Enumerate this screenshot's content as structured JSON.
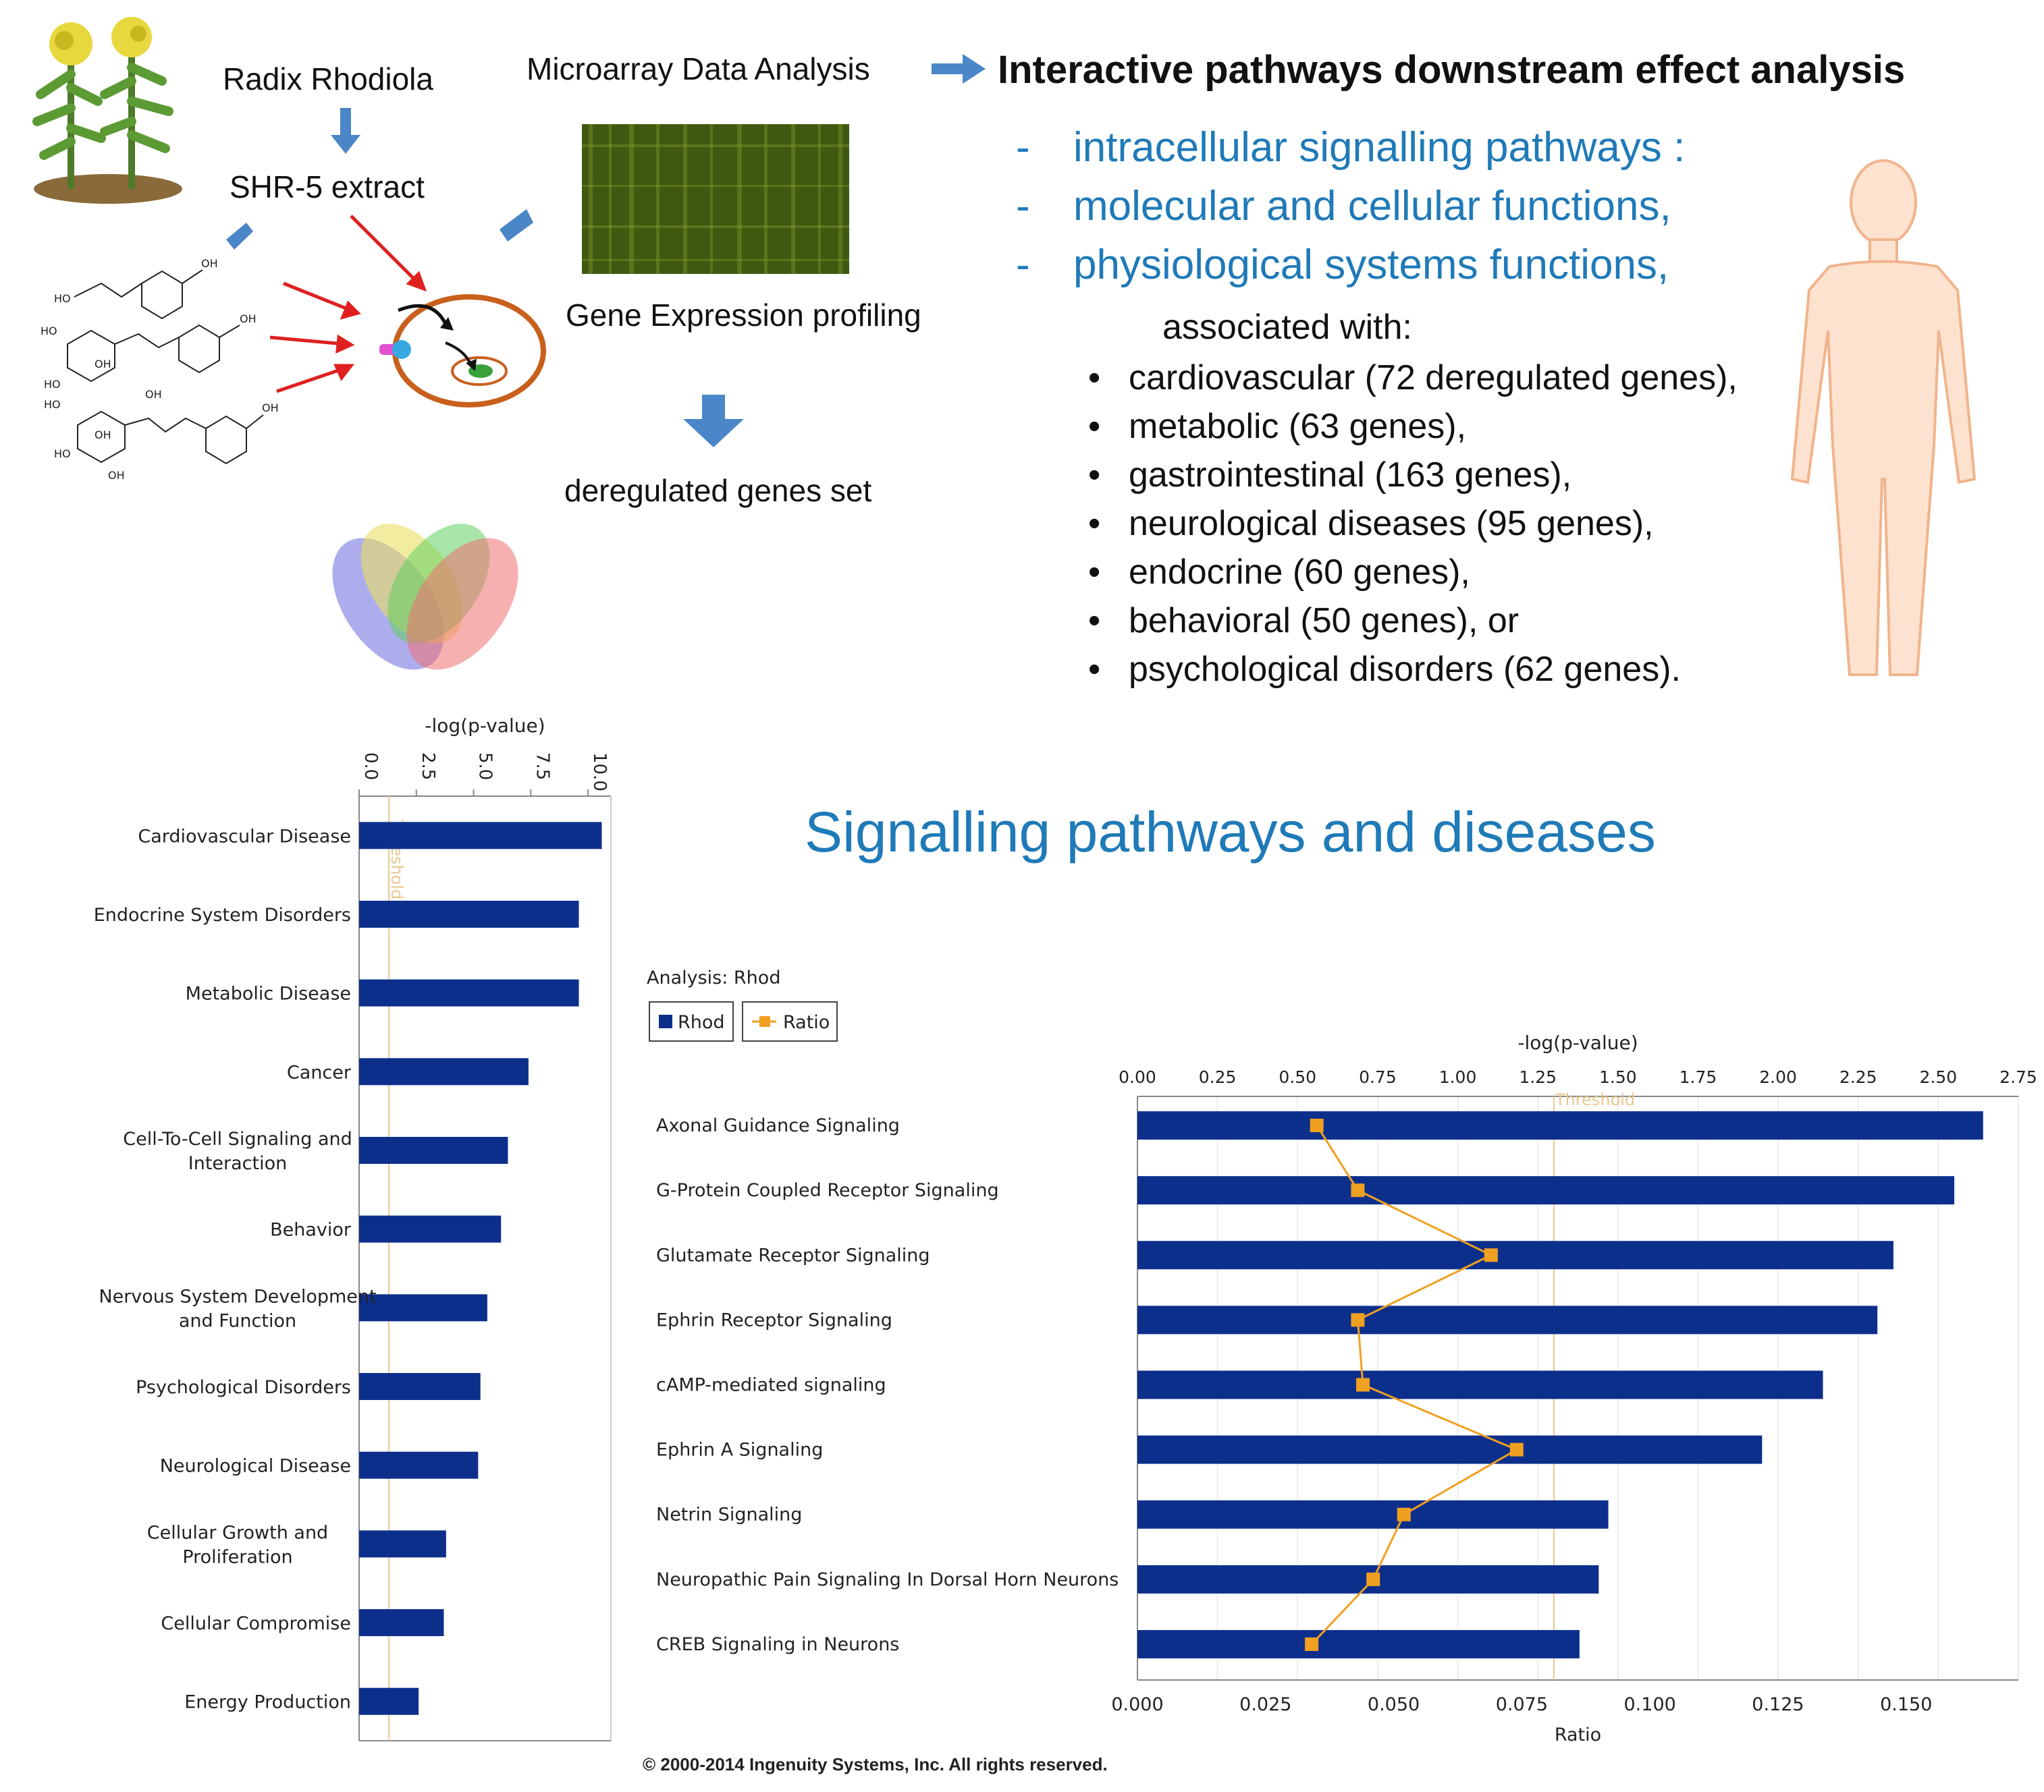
{
  "workflow": {
    "source_label": "Radix Rhodiola",
    "extract_label": "SHR-5 extract",
    "microarray_label": "Microarray Data Analysis",
    "profiling_label": "Gene Expression profiling",
    "deregulated_label": "deregulated genes set",
    "molecule_labels": [
      "OH",
      "HO",
      "HO",
      "OH",
      "OH",
      "HO",
      "HO",
      "OH",
      "HO",
      "OH",
      "OH",
      "OH"
    ]
  },
  "analysis": {
    "title": "Interactive pathways downstream effect analysis",
    "dash_items": [
      "intracellular signalling pathways :",
      "molecular and cellular functions,",
      "physiological systems functions,"
    ],
    "associated_label": "associated with:",
    "bullets": [
      "cardiovascular (72 deregulated genes),",
      "metabolic (63 genes),",
      "gastrointestinal (163 genes),",
      "neurological diseases (95 genes),",
      "endocrine (60 genes),",
      "behavioral (50 genes), or",
      "psychological disorders (62 genes)."
    ],
    "bullet_symbol": "•",
    "dash_symbol": "-"
  },
  "section_title": "Signalling pathways and diseases",
  "colors": {
    "bar": "#0d2f8c",
    "ratio": "#f0a020",
    "threshold": "#e8c890",
    "accent_blue": "#1f7ab8",
    "arrow_blue": "#4a86c8"
  },
  "chart_data": [
    {
      "type": "bar",
      "orientation": "horizontal",
      "title": "",
      "xlabel": "-log(p-value)",
      "xlim": [
        0,
        11
      ],
      "ticks": [
        "0.0",
        "2.5",
        "5.0",
        "7.5",
        "10.0"
      ],
      "tick_values": [
        0,
        2.5,
        5.0,
        7.5,
        10.0
      ],
      "threshold": 1.3,
      "threshold_label": "Threshold",
      "categories": [
        [
          "Cardiovascular Disease"
        ],
        [
          "Endocrine System Disorders"
        ],
        [
          "Metabolic Disease"
        ],
        [
          "Cancer"
        ],
        [
          "Cell-To-Cell Signaling and",
          "Interaction"
        ],
        [
          "Behavior"
        ],
        [
          "Nervous System Development",
          "and Function"
        ],
        [
          "Psychological Disorders"
        ],
        [
          "Neurological Disease"
        ],
        [
          "Cellular Growth and",
          "Proliferation"
        ],
        [
          "Cellular Compromise"
        ],
        [
          "Energy Production"
        ]
      ],
      "values": [
        10.6,
        9.6,
        9.6,
        7.4,
        6.5,
        6.2,
        5.6,
        5.3,
        5.2,
        3.8,
        3.7,
        2.6
      ]
    },
    {
      "type": "bar",
      "orientation": "horizontal",
      "analysis_label": "Analysis: Rhod",
      "legend": [
        {
          "name": "Rhod",
          "kind": "bar"
        },
        {
          "name": "Ratio",
          "kind": "line"
        }
      ],
      "xlabel_top": "-log(p-value)",
      "xlabel_bottom": "Ratio",
      "xlim_top": [
        0,
        2.75
      ],
      "xlim_bottom": [
        0,
        0.1719
      ],
      "top_ticks": [
        "0.00",
        "0.25",
        "0.50",
        "0.75",
        "1.00",
        "1.25",
        "1.50",
        "1.75",
        "2.00",
        "2.25",
        "2.50",
        "2.75"
      ],
      "top_tick_values": [
        0,
        0.25,
        0.5,
        0.75,
        1.0,
        1.25,
        1.5,
        1.75,
        2.0,
        2.25,
        2.5,
        2.75
      ],
      "bottom_ticks": [
        "0.000",
        "0.025",
        "0.050",
        "0.075",
        "0.100",
        "0.125",
        "0.150"
      ],
      "bottom_tick_values": [
        0,
        0.025,
        0.05,
        0.075,
        0.1,
        0.125,
        0.15
      ],
      "threshold": 1.3,
      "threshold_label": "Threshold",
      "categories": [
        "Axonal Guidance Signaling",
        "G-Protein Coupled Receptor Signaling",
        "Glutamate Receptor Signaling",
        "Ephrin Receptor Signaling",
        "cAMP-mediated signaling",
        "Ephrin A Signaling",
        "Netrin Signaling",
        "Neuropathic Pain Signaling In Dorsal Horn Neurons",
        "CREB Signaling in Neurons"
      ],
      "series": [
        {
          "name": "Rhod",
          "values": [
            2.64,
            2.55,
            2.36,
            2.31,
            2.14,
            1.95,
            1.47,
            1.44,
            1.38
          ]
        },
        {
          "name": "Ratio",
          "values": [
            0.035,
            0.043,
            0.069,
            0.043,
            0.044,
            0.074,
            0.052,
            0.046,
            0.034
          ]
        }
      ]
    }
  ],
  "copyright": "© 2000-2014 Ingenuity Systems, Inc. All rights reserved."
}
